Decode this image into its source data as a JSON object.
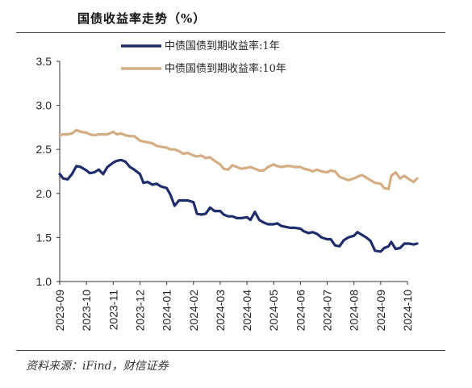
{
  "title": "国债收益率走势（%）",
  "source": "资料来源：iFind，财信证券",
  "chart_data": {
    "type": "line",
    "title": "国债收益率走势（%）",
    "xlabel": "",
    "ylabel": "",
    "ylim": [
      1.0,
      3.5
    ],
    "yticks": [
      "1.0",
      "1.5",
      "2.0",
      "2.5",
      "3.0",
      "3.5"
    ],
    "xticks": [
      "2023-09",
      "2023-10",
      "2023-11",
      "2023-12",
      "2024-01",
      "2024-02",
      "2024-03",
      "2024-04",
      "2024-05",
      "2024-06",
      "2024-07",
      "2024-08",
      "2024-09",
      "2024-10"
    ],
    "legend_position": "top",
    "grid": false,
    "series": [
      {
        "name": "中债国债到期收益率:1年",
        "color": "#1f2d6b",
        "points": [
          [
            "2023-09-01",
            2.22
          ],
          [
            "2023-09-05",
            2.17
          ],
          [
            "2023-09-10",
            2.16
          ],
          [
            "2023-09-15",
            2.22
          ],
          [
            "2023-09-20",
            2.31
          ],
          [
            "2023-09-25",
            2.3
          ],
          [
            "2023-10-01",
            2.26
          ],
          [
            "2023-10-05",
            2.23
          ],
          [
            "2023-10-10",
            2.24
          ],
          [
            "2023-10-15",
            2.27
          ],
          [
            "2023-10-20",
            2.22
          ],
          [
            "2023-10-25",
            2.3
          ],
          [
            "2023-11-01",
            2.35
          ],
          [
            "2023-11-05",
            2.37
          ],
          [
            "2023-11-10",
            2.38
          ],
          [
            "2023-11-15",
            2.36
          ],
          [
            "2023-11-20",
            2.3
          ],
          [
            "2023-11-25",
            2.27
          ],
          [
            "2023-12-01",
            2.22
          ],
          [
            "2023-12-05",
            2.12
          ],
          [
            "2023-12-10",
            2.13
          ],
          [
            "2023-12-15",
            2.1
          ],
          [
            "2023-12-20",
            2.11
          ],
          [
            "2023-12-25",
            2.08
          ],
          [
            "2024-01-01",
            2.06
          ],
          [
            "2024-01-05",
            1.99
          ],
          [
            "2024-01-10",
            1.86
          ],
          [
            "2024-01-15",
            1.92
          ],
          [
            "2024-01-20",
            1.92
          ],
          [
            "2024-01-25",
            1.92
          ],
          [
            "2024-02-01",
            1.9
          ],
          [
            "2024-02-05",
            1.77
          ],
          [
            "2024-02-10",
            1.76
          ],
          [
            "2024-02-15",
            1.77
          ],
          [
            "2024-02-20",
            1.84
          ],
          [
            "2024-02-25",
            1.8
          ],
          [
            "2024-03-01",
            1.8
          ],
          [
            "2024-03-05",
            1.76
          ],
          [
            "2024-03-10",
            1.74
          ],
          [
            "2024-03-15",
            1.74
          ],
          [
            "2024-03-20",
            1.72
          ],
          [
            "2024-03-25",
            1.72
          ],
          [
            "2024-04-01",
            1.73
          ],
          [
            "2024-04-05",
            1.7
          ],
          [
            "2024-04-10",
            1.79
          ],
          [
            "2024-04-15",
            1.7
          ],
          [
            "2024-04-20",
            1.67
          ],
          [
            "2024-04-25",
            1.65
          ],
          [
            "2024-05-01",
            1.65
          ],
          [
            "2024-05-05",
            1.66
          ],
          [
            "2024-05-10",
            1.63
          ],
          [
            "2024-05-15",
            1.62
          ],
          [
            "2024-05-20",
            1.61
          ],
          [
            "2024-05-25",
            1.61
          ],
          [
            "2024-06-01",
            1.6
          ],
          [
            "2024-06-05",
            1.57
          ],
          [
            "2024-06-10",
            1.55
          ],
          [
            "2024-06-15",
            1.56
          ],
          [
            "2024-06-20",
            1.54
          ],
          [
            "2024-06-25",
            1.5
          ],
          [
            "2024-07-01",
            1.48
          ],
          [
            "2024-07-05",
            1.48
          ],
          [
            "2024-07-10",
            1.41
          ],
          [
            "2024-07-15",
            1.4
          ],
          [
            "2024-07-20",
            1.47
          ],
          [
            "2024-07-25",
            1.5
          ],
          [
            "2024-08-01",
            1.52
          ],
          [
            "2024-08-05",
            1.56
          ],
          [
            "2024-08-10",
            1.53
          ],
          [
            "2024-08-15",
            1.5
          ],
          [
            "2024-08-20",
            1.46
          ],
          [
            "2024-08-25",
            1.35
          ],
          [
            "2024-09-01",
            1.34
          ],
          [
            "2024-09-05",
            1.38
          ],
          [
            "2024-09-10",
            1.4
          ],
          [
            "2024-09-13",
            1.45
          ],
          [
            "2024-09-18",
            1.37
          ],
          [
            "2024-09-23",
            1.38
          ],
          [
            "2024-09-28",
            1.43
          ],
          [
            "2024-10-03",
            1.43
          ],
          [
            "2024-10-08",
            1.42
          ],
          [
            "2024-10-12",
            1.43
          ]
        ]
      },
      {
        "name": "中债国债到期收益率:10年",
        "color": "#d4ad85",
        "points": [
          [
            "2023-09-01",
            2.66
          ],
          [
            "2023-09-05",
            2.67
          ],
          [
            "2023-09-10",
            2.67
          ],
          [
            "2023-09-15",
            2.68
          ],
          [
            "2023-09-20",
            2.72
          ],
          [
            "2023-09-25",
            2.7
          ],
          [
            "2023-10-01",
            2.69
          ],
          [
            "2023-10-05",
            2.67
          ],
          [
            "2023-10-10",
            2.66
          ],
          [
            "2023-10-15",
            2.67
          ],
          [
            "2023-10-20",
            2.67
          ],
          [
            "2023-10-25",
            2.67
          ],
          [
            "2023-11-01",
            2.7
          ],
          [
            "2023-11-05",
            2.67
          ],
          [
            "2023-11-10",
            2.68
          ],
          [
            "2023-11-15",
            2.66
          ],
          [
            "2023-11-20",
            2.65
          ],
          [
            "2023-11-25",
            2.65
          ],
          [
            "2023-12-01",
            2.6
          ],
          [
            "2023-12-05",
            2.59
          ],
          [
            "2023-12-10",
            2.58
          ],
          [
            "2023-12-15",
            2.57
          ],
          [
            "2023-12-20",
            2.54
          ],
          [
            "2023-12-25",
            2.53
          ],
          [
            "2024-01-01",
            2.52
          ],
          [
            "2024-01-05",
            2.5
          ],
          [
            "2024-01-10",
            2.5
          ],
          [
            "2024-01-15",
            2.48
          ],
          [
            "2024-01-20",
            2.45
          ],
          [
            "2024-01-25",
            2.46
          ],
          [
            "2024-02-01",
            2.43
          ],
          [
            "2024-02-05",
            2.42
          ],
          [
            "2024-02-10",
            2.43
          ],
          [
            "2024-02-15",
            2.4
          ],
          [
            "2024-02-20",
            2.41
          ],
          [
            "2024-02-25",
            2.37
          ],
          [
            "2024-03-01",
            2.33
          ],
          [
            "2024-03-05",
            2.28
          ],
          [
            "2024-03-10",
            2.27
          ],
          [
            "2024-03-15",
            2.32
          ],
          [
            "2024-03-20",
            2.3
          ],
          [
            "2024-03-25",
            2.28
          ],
          [
            "2024-04-01",
            2.29
          ],
          [
            "2024-04-05",
            2.3
          ],
          [
            "2024-04-10",
            2.28
          ],
          [
            "2024-04-15",
            2.26
          ],
          [
            "2024-04-20",
            2.26
          ],
          [
            "2024-04-25",
            2.3
          ],
          [
            "2024-05-01",
            2.33
          ],
          [
            "2024-05-05",
            2.31
          ],
          [
            "2024-05-10",
            2.3
          ],
          [
            "2024-05-15",
            2.31
          ],
          [
            "2024-05-20",
            2.31
          ],
          [
            "2024-05-25",
            2.3
          ],
          [
            "2024-06-01",
            2.3
          ],
          [
            "2024-06-05",
            2.28
          ],
          [
            "2024-06-10",
            2.27
          ],
          [
            "2024-06-15",
            2.25
          ],
          [
            "2024-06-20",
            2.27
          ],
          [
            "2024-06-25",
            2.25
          ],
          [
            "2024-07-01",
            2.24
          ],
          [
            "2024-07-05",
            2.26
          ],
          [
            "2024-07-10",
            2.25
          ],
          [
            "2024-07-15",
            2.19
          ],
          [
            "2024-07-20",
            2.17
          ],
          [
            "2024-07-25",
            2.15
          ],
          [
            "2024-08-01",
            2.17
          ],
          [
            "2024-08-05",
            2.19
          ],
          [
            "2024-08-10",
            2.21
          ],
          [
            "2024-08-15",
            2.18
          ],
          [
            "2024-08-20",
            2.15
          ],
          [
            "2024-08-25",
            2.12
          ],
          [
            "2024-09-01",
            2.11
          ],
          [
            "2024-09-05",
            2.06
          ],
          [
            "2024-09-10",
            2.05
          ],
          [
            "2024-09-13",
            2.2
          ],
          [
            "2024-09-18",
            2.24
          ],
          [
            "2024-09-23",
            2.17
          ],
          [
            "2024-09-28",
            2.2
          ],
          [
            "2024-10-03",
            2.16
          ],
          [
            "2024-10-08",
            2.13
          ],
          [
            "2024-10-12",
            2.17
          ]
        ]
      }
    ]
  }
}
